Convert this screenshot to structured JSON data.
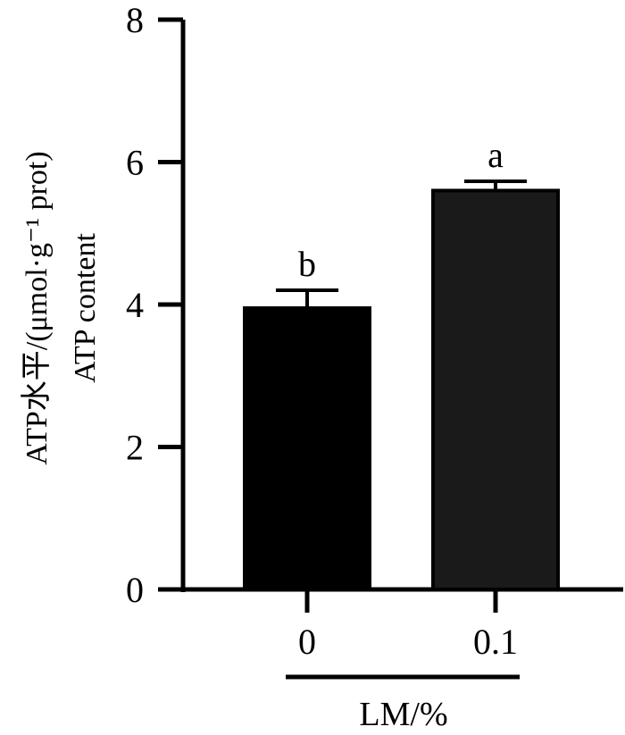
{
  "chart_data": {
    "type": "bar",
    "categories": [
      "0",
      "0.1"
    ],
    "values": [
      3.95,
      5.6
    ],
    "errors": [
      0.25,
      0.13
    ],
    "significance_labels": [
      "b",
      "a"
    ],
    "bar_colors": [
      "#000000",
      "#1a1a1a"
    ],
    "ylim": [
      0,
      8
    ],
    "yticks": [
      "0",
      "2",
      "4",
      "6",
      "8"
    ],
    "xlabel": "LM/%",
    "ylabel_line1": "ATP水平/(μmol·g⁻¹ prot)",
    "ylabel_line2": "ATP content"
  }
}
